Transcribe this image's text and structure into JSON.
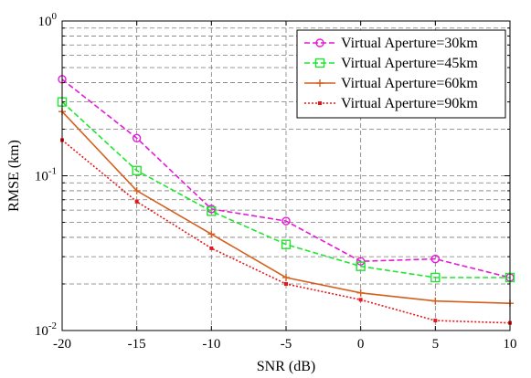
{
  "chart_data": {
    "type": "line",
    "title": "",
    "xlabel": "SNR (dB)",
    "ylabel": "RMSE (km)",
    "xscale": "linear",
    "yscale": "log",
    "xlim": [
      -20,
      10
    ],
    "ylim": [
      0.01,
      1
    ],
    "grid": true,
    "legend_position": "top-right",
    "x": [
      -20,
      -15,
      -10,
      -5,
      0,
      5,
      10
    ],
    "x_tick_labels": [
      "-20",
      "-15",
      "-10",
      "-5",
      "0",
      "5",
      "10"
    ],
    "y_tick_labels": [
      {
        "base": "10",
        "exp": "0",
        "value": 1
      },
      {
        "base": "10",
        "exp": "-1",
        "value": 0.1
      },
      {
        "base": "10",
        "exp": "-2",
        "value": 0.01
      }
    ],
    "series": [
      {
        "name": "Virtual Aperture=30km",
        "color": "#e41ad6",
        "line": "dashed",
        "marker": "circle",
        "values": [
          0.42,
          0.175,
          0.061,
          0.051,
          0.028,
          0.029,
          0.022
        ]
      },
      {
        "name": "Virtual Aperture=45km",
        "color": "#1ee62e",
        "line": "dashed",
        "marker": "square",
        "values": [
          0.3,
          0.108,
          0.059,
          0.036,
          0.026,
          0.022,
          0.022
        ]
      },
      {
        "name": "Virtual Aperture=60km",
        "color": "#d35f1e",
        "line": "solid",
        "marker": "plus",
        "values": [
          0.26,
          0.08,
          0.042,
          0.022,
          0.0175,
          0.0155,
          0.015
        ]
      },
      {
        "name": "Virtual Aperture=90km",
        "color": "#e8161a",
        "line": "dotted",
        "marker": "dot",
        "values": [
          0.17,
          0.068,
          0.034,
          0.02,
          0.0158,
          0.0116,
          0.0112
        ]
      }
    ]
  }
}
